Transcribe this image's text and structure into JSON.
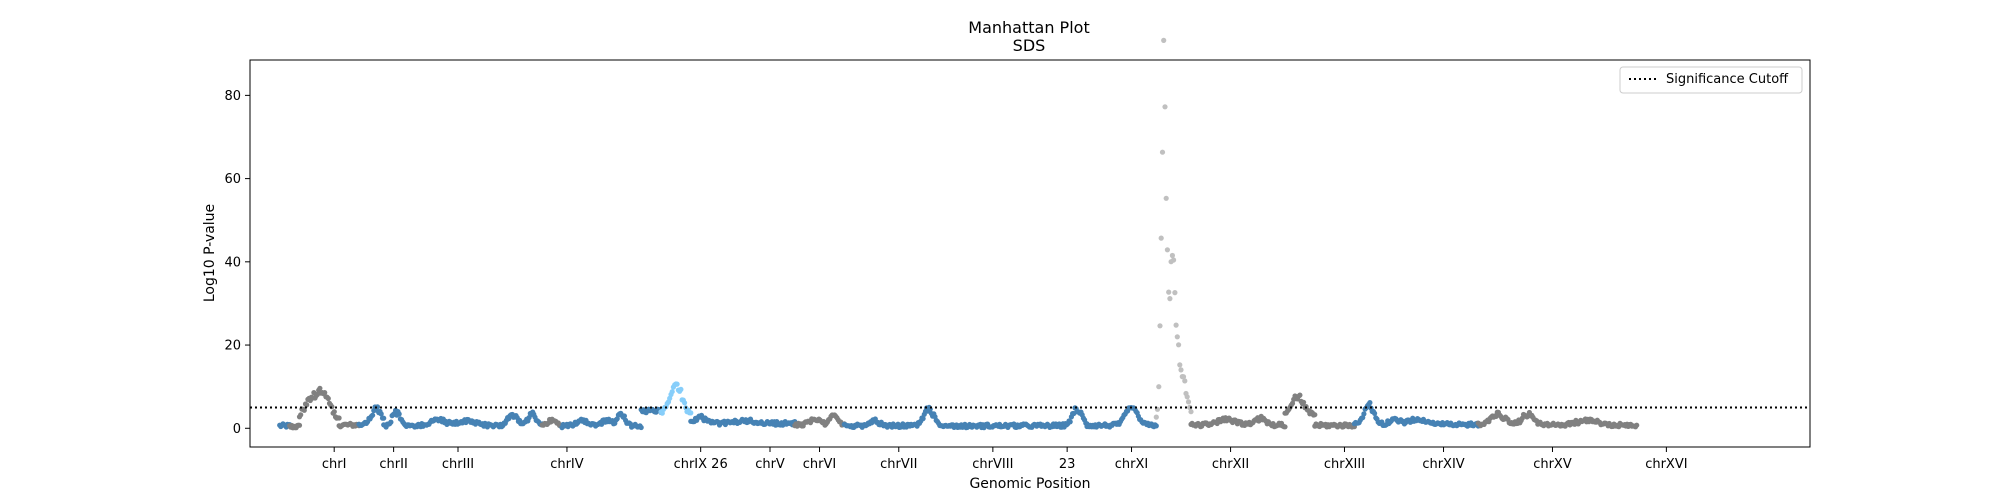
{
  "chart_data": {
    "type": "scatter",
    "title": "Manhattan Plot",
    "subtitle": "SDS",
    "xlabel": "Genomic Position",
    "ylabel": "Log10 P-value",
    "ylim": [
      -4.5,
      88.5
    ],
    "yticks": [
      0,
      20,
      40,
      60,
      80
    ],
    "grid": false,
    "legend": {
      "placement": "top-right",
      "entries": [
        "Significance Cutoff"
      ]
    },
    "threshold": {
      "value": 5.0,
      "label": "Significance Cutoff",
      "style": "dotted",
      "color": "#000000"
    },
    "colors": {
      "blue": "#4682b4",
      "gray": "#808080",
      "light_blue": "#87cefa",
      "light_gray": "#c0c0c0"
    },
    "segments": [
      {
        "start": 0.01,
        "end": 0.03,
        "color": "blue",
        "base": 0.6,
        "peaks": []
      },
      {
        "start": 0.03,
        "end": 0.05,
        "color": "gray",
        "base": 0.4,
        "peaks": []
      },
      {
        "start": 0.05,
        "end": 0.13,
        "color": "gray",
        "base": 1.2,
        "peaks": [
          [
            0.075,
            5.0,
            0.018
          ],
          [
            0.1,
            5.2,
            0.015
          ]
        ]
      },
      {
        "start": 0.13,
        "end": 0.17,
        "color": "gray",
        "base": 0.8,
        "peaks": []
      },
      {
        "start": 0.17,
        "end": 0.22,
        "color": "blue",
        "base": 0.8,
        "peaks": [
          [
            0.205,
            4.0,
            0.01
          ]
        ]
      },
      {
        "start": 0.22,
        "end": 0.54,
        "color": "blue",
        "base": 0.6,
        "peaks": [
          [
            0.245,
            3.2,
            0.008
          ],
          [
            0.33,
            1.5,
            0.015
          ],
          [
            0.39,
            1.2,
            0.02
          ],
          [
            0.48,
            2.5,
            0.01
          ],
          [
            0.52,
            2.8,
            0.008
          ]
        ]
      },
      {
        "start": 0.54,
        "end": 0.58,
        "color": "gray",
        "base": 0.7,
        "peaks": [
          [
            0.56,
            1.2,
            0.008
          ]
        ]
      },
      {
        "start": 0.58,
        "end": 0.74,
        "color": "blue",
        "base": 0.6,
        "peaks": [
          [
            0.62,
            1.4,
            0.01
          ],
          [
            0.67,
            1.4,
            0.01
          ],
          [
            0.7,
            2.8,
            0.008
          ]
        ]
      },
      {
        "start": 0.74,
        "end": 0.78,
        "color": "blue",
        "base": 4.2,
        "peaks": []
      },
      {
        "start": 0.78,
        "end": 0.84,
        "color": "light_blue",
        "base": 3.2,
        "peaks": [
          [
            0.81,
            7.5,
            0.012
          ]
        ]
      },
      {
        "start": 0.84,
        "end": 1.05,
        "color": "blue",
        "base": 1.2,
        "peaks": [
          [
            0.86,
            1.5,
            0.01
          ],
          [
            0.95,
            0.6,
            0.02
          ]
        ]
      },
      {
        "start": 1.05,
        "end": 1.15,
        "color": "gray",
        "base": 0.8,
        "peaks": [
          [
            1.09,
            1.6,
            0.01
          ],
          [
            1.13,
            2.4,
            0.008
          ]
        ]
      },
      {
        "start": 1.15,
        "end": 1.42,
        "color": "blue",
        "base": 0.6,
        "peaks": [
          [
            1.21,
            1.2,
            0.01
          ],
          [
            1.32,
            4.0,
            0.01
          ],
          [
            1.46,
            3.0,
            0.008
          ]
        ]
      },
      {
        "start": 1.42,
        "end": 1.64,
        "color": "blue",
        "base": 0.6,
        "peaks": [
          [
            1.62,
            3.8,
            0.01
          ]
        ]
      },
      {
        "start": 1.64,
        "end": 1.78,
        "color": "blue",
        "base": 0.7,
        "peaks": [
          [
            1.73,
            4.2,
            0.012
          ]
        ]
      },
      {
        "start": 1.78,
        "end": 1.85,
        "color": "light_gray",
        "base": 2.5,
        "peaks": [
          [
            1.795,
            78.0,
            0.0045
          ],
          [
            1.812,
            35.0,
            0.009
          ],
          [
            1.835,
            8.0,
            0.008
          ]
        ]
      },
      {
        "start": 1.85,
        "end": 2.04,
        "color": "gray",
        "base": 0.8,
        "peaks": [
          [
            1.92,
            1.2,
            0.02
          ],
          [
            1.99,
            1.6,
            0.01
          ]
        ]
      },
      {
        "start": 2.04,
        "end": 2.1,
        "color": "gray",
        "base": 3.2,
        "peaks": [
          [
            2.065,
            4.5,
            0.012
          ]
        ]
      },
      {
        "start": 2.1,
        "end": 2.18,
        "color": "gray",
        "base": 0.7,
        "peaks": []
      },
      {
        "start": 2.18,
        "end": 2.43,
        "color": "blue",
        "base": 0.9,
        "peaks": [
          [
            2.21,
            4.5,
            0.01
          ],
          [
            2.26,
            1.2,
            0.01
          ],
          [
            2.31,
            1.2,
            0.02
          ]
        ]
      },
      {
        "start": 2.43,
        "end": 2.75,
        "color": "gray",
        "base": 0.8,
        "peaks": [
          [
            2.47,
            2.4,
            0.015
          ],
          [
            2.53,
            2.4,
            0.012
          ],
          [
            2.65,
            1.2,
            0.02
          ]
        ]
      }
    ],
    "xticks": [
      {
        "pos": 0.12,
        "label": "chrI"
      },
      {
        "pos": 0.24,
        "label": "chrII"
      },
      {
        "pos": 0.37,
        "label": "chrIII"
      },
      {
        "pos": 0.59,
        "label": "chrIV"
      },
      {
        "pos": 0.86,
        "label": "chrIX 26"
      },
      {
        "pos": 1.0,
        "label": "chrV"
      },
      {
        "pos": 1.1,
        "label": "chrVI"
      },
      {
        "pos": 1.26,
        "label": "chrVII"
      },
      {
        "pos": 1.45,
        "label": "chrVIII"
      },
      {
        "pos": 1.6,
        "label": "23"
      },
      {
        "pos": 1.73,
        "label": "chrXI"
      },
      {
        "pos": 1.93,
        "label": "chrXII"
      },
      {
        "pos": 2.16,
        "label": "chrXIII"
      },
      {
        "pos": 2.36,
        "label": "chrXIV"
      },
      {
        "pos": 2.58,
        "label": "chrXV"
      },
      {
        "pos": 2.81,
        "label": "chrXVI"
      }
    ],
    "xlim": [
      -0.05,
      3.1
    ]
  }
}
